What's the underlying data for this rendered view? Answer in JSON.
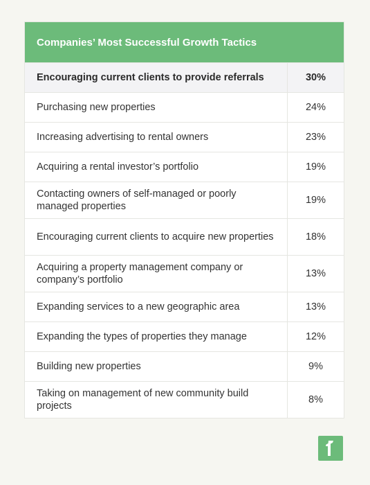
{
  "table": {
    "title": "Companies’ Most Successful Growth Tactics",
    "rows": [
      {
        "label": "Encouraging current clients to provide referrals",
        "value": "30%"
      },
      {
        "label": "Purchasing new properties",
        "value": "24%"
      },
      {
        "label": "Increasing advertising to rental owners",
        "value": "23%"
      },
      {
        "label": "Acquiring a rental investor’s portfolio",
        "value": "19%"
      },
      {
        "label": "Contacting owners of self-managed or poorly managed properties",
        "value": "19%"
      },
      {
        "label": "Encouraging current clients to acquire new properties",
        "value": "18%"
      },
      {
        "label": "Acquiring a property management company or company’s portfolio",
        "value": "13%"
      },
      {
        "label": "Expanding services to a new geographic area",
        "value": "13%"
      },
      {
        "label": "Expanding the types of properties they manage",
        "value": "12%"
      },
      {
        "label": "Building new properties",
        "value": "9%"
      },
      {
        "label": "Taking on management of new community build projects",
        "value": "8%"
      }
    ]
  },
  "logo": {
    "icon": "brand-logo-icon",
    "color": "#6cbb7a"
  }
}
